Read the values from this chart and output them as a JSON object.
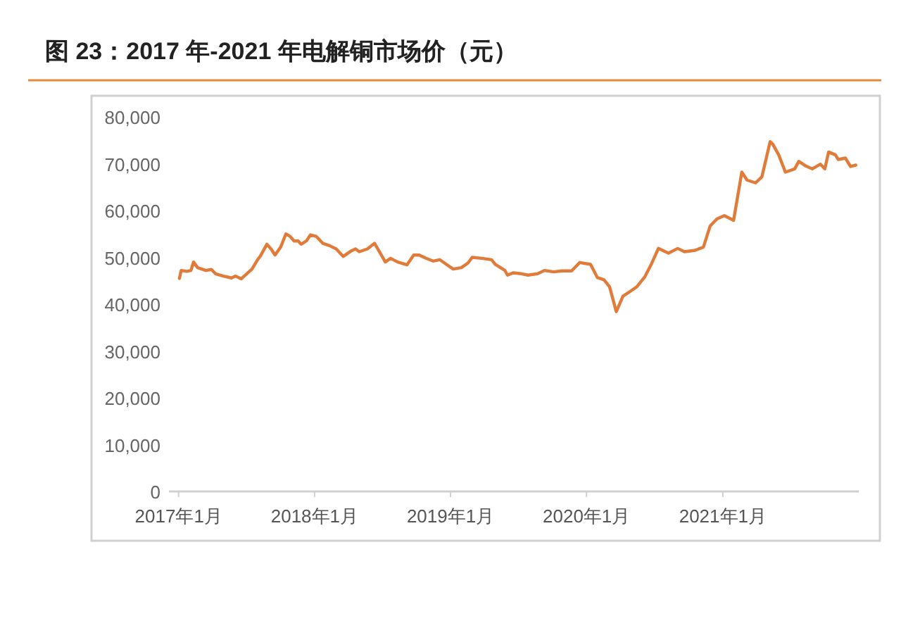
{
  "chart_data": {
    "type": "line",
    "title": "图 23：2017 年-2021 年电解铜市场价（元）",
    "x": [
      "2017-01-03",
      "2017-01-08",
      "2017-01-23",
      "2017-02-03",
      "2017-02-10",
      "2017-02-21",
      "2017-03-15",
      "2017-03-30",
      "2017-04-10",
      "2017-05-01",
      "2017-05-23",
      "2017-06-03",
      "2017-06-18",
      "2017-07-06",
      "2017-07-17",
      "2017-08-01",
      "2017-08-08",
      "2017-08-26",
      "2017-09-06",
      "2017-09-17",
      "2017-10-02",
      "2017-10-16",
      "2017-10-27",
      "2017-11-07",
      "2017-11-18",
      "2017-11-26",
      "2017-12-10",
      "2017-12-21",
      "2018-01-05",
      "2018-01-23",
      "2018-02-10",
      "2018-02-28",
      "2018-03-19",
      "2018-04-10",
      "2018-04-21",
      "2018-05-01",
      "2018-05-23",
      "2018-06-11",
      "2018-06-22",
      "2018-07-10",
      "2018-07-24",
      "2018-08-12",
      "2018-09-06",
      "2018-09-24",
      "2018-10-09",
      "2018-10-27",
      "2018-11-15",
      "2018-12-03",
      "2018-12-21",
      "2019-01-08",
      "2019-01-30",
      "2019-02-17",
      "2019-02-28",
      "2019-03-26",
      "2019-04-21",
      "2019-05-01",
      "2019-05-27",
      "2019-06-03",
      "2019-06-18",
      "2019-07-10",
      "2019-07-28",
      "2019-08-23",
      "2019-09-10",
      "2019-10-05",
      "2019-10-27",
      "2019-11-22",
      "2019-12-14",
      "2020-01-12",
      "2020-01-30",
      "2020-02-17",
      "2020-03-03",
      "2020-03-21",
      "2020-04-08",
      "2020-04-27",
      "2020-05-15",
      "2020-06-06",
      "2020-06-24",
      "2020-07-12",
      "2020-08-08",
      "2020-09-02",
      "2020-09-20",
      "2020-10-19",
      "2020-11-10",
      "2020-11-28",
      "2020-12-16",
      "2021-01-05",
      "2021-01-30",
      "2021-02-21",
      "2021-03-07",
      "2021-03-30",
      "2021-04-16",
      "2021-05-08",
      "2021-05-15",
      "2021-05-31",
      "2021-06-18",
      "2021-07-13",
      "2021-07-24",
      "2021-08-12",
      "2021-08-29",
      "2021-09-20",
      "2021-10-02",
      "2021-10-12",
      "2021-10-30",
      "2021-11-07",
      "2021-11-26",
      "2021-12-10",
      "2021-12-24"
    ],
    "series": [
      {
        "color": "#e07b39",
        "values": [
          45500,
          47200,
          47000,
          47200,
          49000,
          47800,
          47200,
          47400,
          46500,
          46000,
          45600,
          46000,
          45400,
          46700,
          47500,
          49500,
          50200,
          52800,
          51800,
          50500,
          52200,
          55000,
          54500,
          53500,
          53500,
          52800,
          53500,
          54800,
          54500,
          53000,
          52500,
          51800,
          50200,
          51400,
          51800,
          51200,
          51800,
          53000,
          51500,
          49000,
          49800,
          49000,
          48400,
          50500,
          50500,
          49800,
          49200,
          49500,
          48500,
          47500,
          47800,
          48800,
          50000,
          49800,
          49500,
          48500,
          47200,
          46200,
          46700,
          46500,
          46200,
          46500,
          47200,
          46900,
          47100,
          47100,
          48900,
          48500,
          45700,
          45200,
          43700,
          38400,
          41700,
          42700,
          43700,
          45900,
          48700,
          51900,
          50900,
          51900,
          51200,
          51500,
          52200,
          56700,
          58200,
          58900,
          57900,
          68200,
          66500,
          65900,
          67200,
          74700,
          74200,
          71900,
          68200,
          68900,
          70500,
          69500,
          68900,
          69900,
          68900,
          72500,
          71900,
          70900,
          71200,
          69400,
          69700
        ]
      }
    ],
    "xlim": [
      "2016-12-06",
      "2022-01-01"
    ],
    "xticks": [
      {
        "value": "2017-01",
        "label": "2017年1月"
      },
      {
        "value": "2018-01",
        "label": "2018年1月"
      },
      {
        "value": "2019-01",
        "label": "2019年1月"
      },
      {
        "value": "2020-01",
        "label": "2020年1月"
      },
      {
        "value": "2021-01",
        "label": "2021年1月"
      }
    ],
    "ylim": [
      0,
      80000
    ],
    "yticks": [
      0,
      {
        "value": 10000,
        "label": "10,000"
      },
      {
        "value": 20000,
        "label": "20,000"
      },
      {
        "value": 30000,
        "label": "30,000"
      },
      {
        "value": 40000,
        "label": "40,000"
      },
      {
        "value": 50000,
        "label": "50,000"
      },
      {
        "value": 60000,
        "label": "60,000"
      },
      {
        "value": 70000,
        "label": "70,000"
      },
      {
        "value": 80000,
        "label": "80,000"
      }
    ],
    "grid": false,
    "line_style": "solid"
  }
}
